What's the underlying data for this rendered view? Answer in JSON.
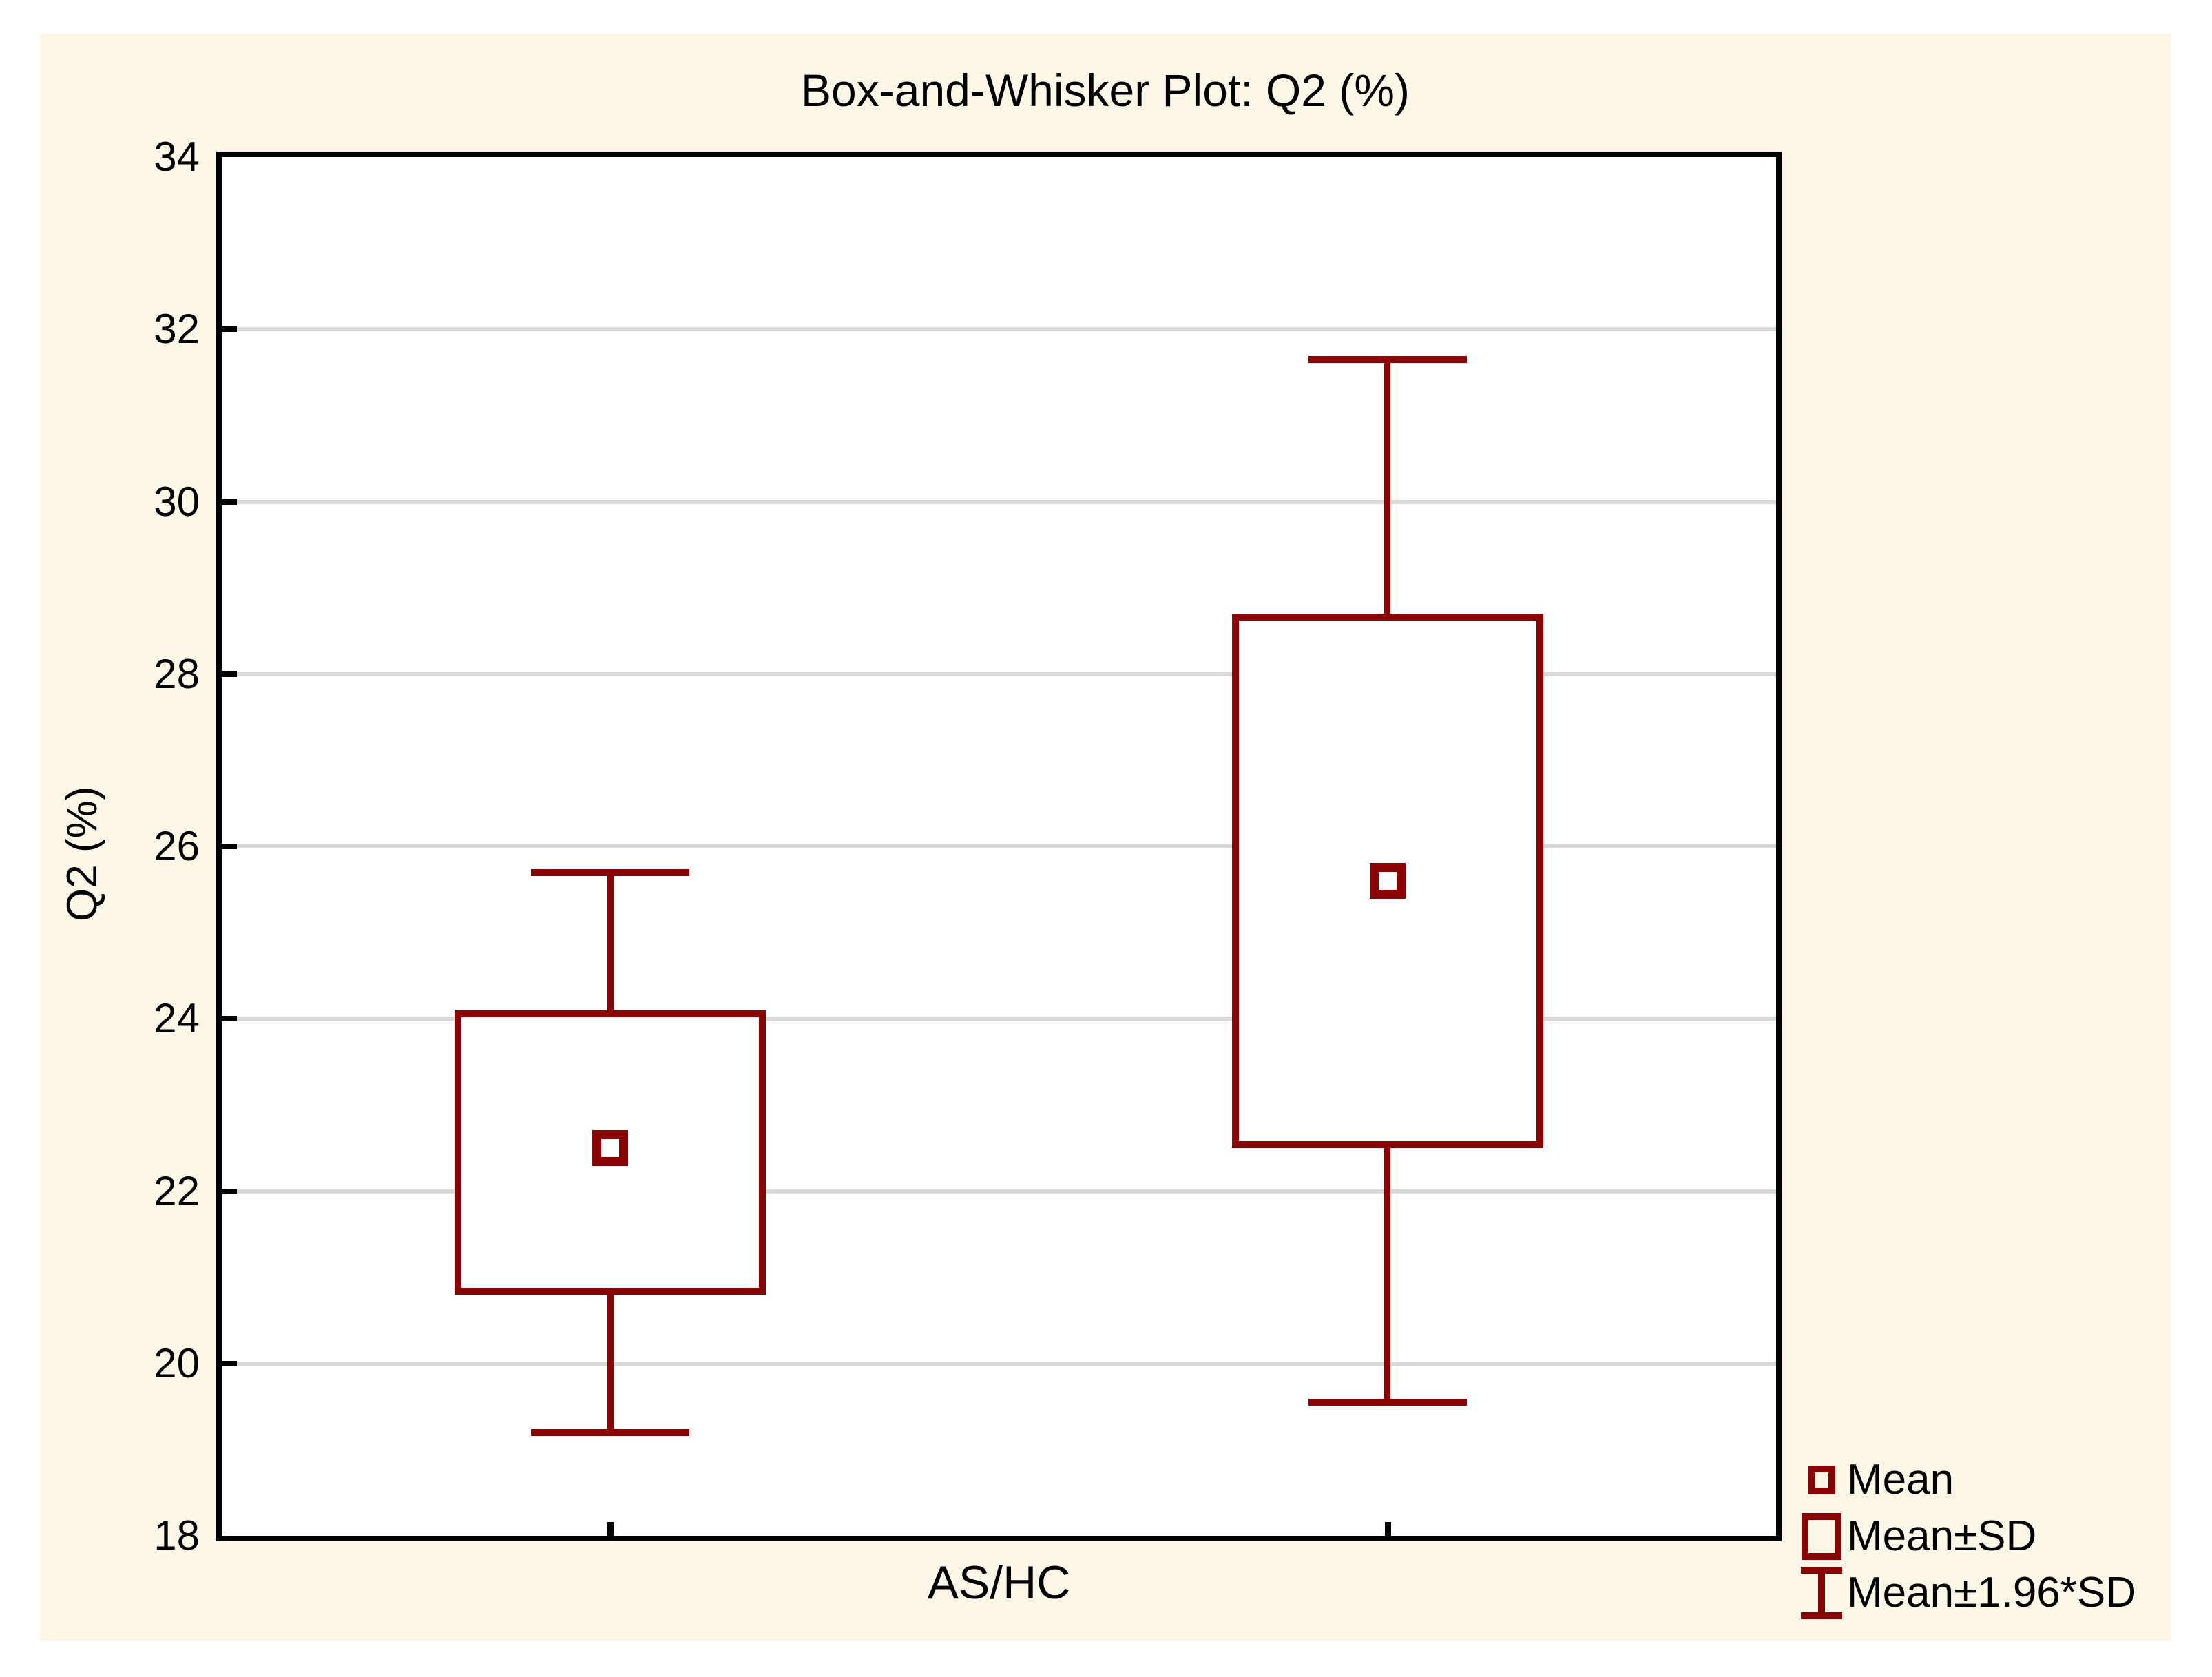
{
  "colors": {
    "accent": "#8b0404",
    "canvas_bg": "#fdf7e7",
    "plot_bg": "#ffffff",
    "grid": "#d9d9d9",
    "frame": "#000000"
  },
  "chart_data": {
    "type": "box",
    "title": "Box-and-Whisker Plot: Q2 (%)",
    "xlabel": "AS/HC",
    "ylabel": "Q2 (%)",
    "ylim": [
      18,
      34
    ],
    "yticks": [
      18,
      20,
      22,
      24,
      26,
      28,
      30,
      32,
      34
    ],
    "grid": "horizontal-only",
    "legend_position": "outside-bottom-right",
    "x_positions": [
      0.25,
      0.75
    ],
    "groups": [
      {
        "x": 1,
        "mean": 22.5,
        "mean_plus_sd": 24.1,
        "mean_minus_sd": 20.8,
        "mean_plus_1_96sd": 25.7,
        "mean_minus_1_96sd": 19.2
      },
      {
        "x": 2,
        "mean": 25.6,
        "mean_plus_sd": 28.7,
        "mean_minus_sd": 22.5,
        "mean_plus_1_96sd": 31.65,
        "mean_minus_1_96sd": 19.55
      }
    ],
    "legend": [
      {
        "icon": "mean-square-icon",
        "label": "Mean"
      },
      {
        "icon": "box-icon",
        "label": "Mean±SD"
      },
      {
        "icon": "whisker-ibeam-icon",
        "label": "Mean±1.96*SD"
      }
    ]
  }
}
